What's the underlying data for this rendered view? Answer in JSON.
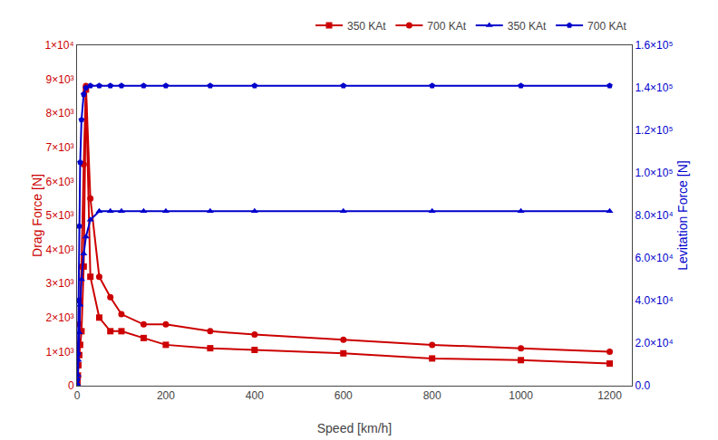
{
  "chart_data": {
    "type": "line",
    "xlabel": "Speed [km/h]",
    "ylabel": "Drag Force [N]",
    "y2label": "Levitation Force [N]",
    "x": [
      0,
      1,
      2,
      3,
      5,
      7,
      10,
      15,
      20,
      30,
      50,
      75,
      100,
      150,
      200,
      300,
      400,
      600,
      800,
      1000,
      1200
    ],
    "xlim": [
      0,
      1250
    ],
    "xticks": [
      0,
      200,
      400,
      600,
      800,
      1000,
      1200
    ],
    "ylim": [
      0,
      10000
    ],
    "yticks": [
      0,
      {
        "value": 1000,
        "label": "1×10³"
      },
      {
        "value": 2000,
        "label": "2×10³"
      },
      {
        "value": 3000,
        "label": "3×10³"
      },
      {
        "value": 4000,
        "label": "4×10³"
      },
      {
        "value": 5000,
        "label": "5×10³"
      },
      {
        "value": 6000,
        "label": "6×10³"
      },
      {
        "value": 7000,
        "label": "7×10³"
      },
      {
        "value": 8000,
        "label": "8×10³"
      },
      {
        "value": 9000,
        "label": "9×10³"
      },
      {
        "value": 10000,
        "label": "1×10⁴"
      }
    ],
    "y2lim": [
      0,
      160000
    ],
    "y2ticks": [
      {
        "value": 0,
        "label": "0.0"
      },
      {
        "value": 20000,
        "label": "2.0×10⁴"
      },
      {
        "value": 40000,
        "label": "4.0×10⁴"
      },
      {
        "value": 60000,
        "label": "6.0×10⁴"
      },
      {
        "value": 80000,
        "label": "8.0×10⁴"
      },
      {
        "value": 100000,
        "label": "1.0×10⁵"
      },
      {
        "value": 120000,
        "label": "1.2×10⁵"
      },
      {
        "value": 140000,
        "label": "1.4×10⁵"
      },
      {
        "value": 160000,
        "label": "1.6×10⁵"
      }
    ],
    "grid": false,
    "legend": "upper right",
    "series": [
      {
        "name": "350 KAt",
        "color": "#cc0000",
        "marker": "square",
        "values": [
          0,
          100,
          300,
          600,
          900,
          1200,
          1600,
          3500,
          8700,
          3200,
          2000,
          1600,
          1600,
          1400,
          1200,
          1100,
          1050,
          950,
          800,
          750,
          650
        ]
      },
      {
        "name": "700 KAt",
        "color": "#cc0000",
        "marker": "circle",
        "values": [
          0,
          200,
          600,
          1200,
          1800,
          2500,
          3500,
          6500,
          8800,
          5500,
          3200,
          2600,
          2100,
          1800,
          1800,
          1600,
          1500,
          1350,
          1200,
          1100,
          1000
        ]
      },
      {
        "name": "350 KAt",
        "color": "#0000cc",
        "marker": "triangle-up",
        "axis": "y2",
        "values": [
          0,
          1000,
          5000,
          12000,
          25000,
          38000,
          50000,
          62000,
          70000,
          78000,
          82000,
          82000,
          82000,
          82000,
          82000,
          82000,
          82000,
          82000,
          82000,
          82000,
          82000
        ]
      },
      {
        "name": "700 KAt",
        "color": "#0000cc",
        "marker": "pentagon",
        "axis": "y2",
        "values": [
          0,
          3000,
          15000,
          40000,
          75000,
          105000,
          125000,
          137000,
          140000,
          141000,
          141000,
          141000,
          141000,
          141000,
          141000,
          141000,
          141000,
          141000,
          141000,
          141000,
          141000
        ]
      }
    ]
  }
}
